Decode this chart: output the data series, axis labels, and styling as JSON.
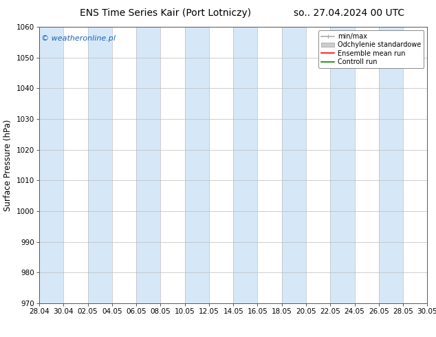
{
  "title_left": "ENS Time Series Kair (Port Lotniczy)",
  "title_right": "so.. 27.04.2024 00 UTC",
  "ylabel": "Surface Pressure (hPa)",
  "watermark": "© weatheronline.pl",
  "ylim": [
    970,
    1060
  ],
  "yticks": [
    970,
    980,
    990,
    1000,
    1010,
    1020,
    1030,
    1040,
    1050,
    1060
  ],
  "xtick_labels": [
    "28.04",
    "30.04",
    "02.05",
    "04.05",
    "06.05",
    "08.05",
    "10.05",
    "12.05",
    "14.05",
    "16.05",
    "18.05",
    "20.05",
    "22.05",
    "24.05",
    "26.05",
    "28.05",
    "30.05"
  ],
  "n_ticks": 17,
  "bg_color": "#ffffff",
  "band_color": "#d6e8f7",
  "grid_color": "#cccccc",
  "legend_items": [
    {
      "label": "min/max",
      "color": "#aaaaaa",
      "lw": 1.2,
      "style": "minmax"
    },
    {
      "label": "Odchylenie standardowe",
      "color": "#cccccc",
      "lw": 4,
      "style": "band"
    },
    {
      "label": "Ensemble mean run",
      "color": "#ff0000",
      "lw": 1.2,
      "style": "line"
    },
    {
      "label": "Controll run",
      "color": "#008000",
      "lw": 1.2,
      "style": "line"
    }
  ],
  "title_fontsize": 10,
  "tick_fontsize": 7.5,
  "ylabel_fontsize": 8.5,
  "watermark_fontsize": 8,
  "legend_fontsize": 7
}
